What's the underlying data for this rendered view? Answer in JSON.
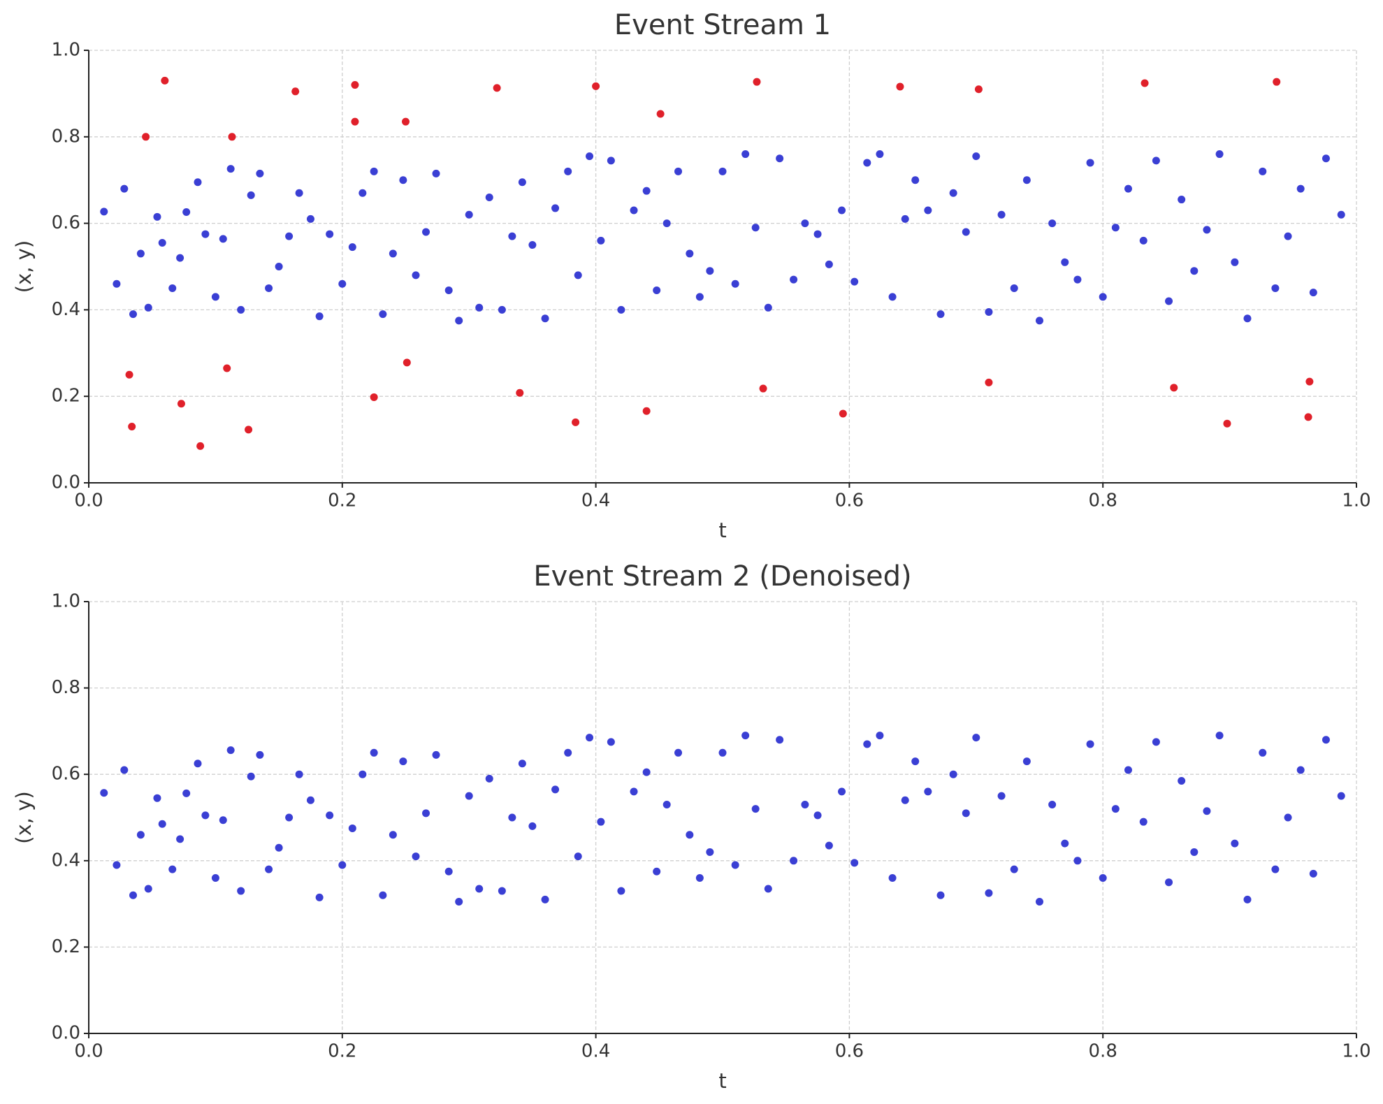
{
  "chart_data": [
    {
      "type": "scatter",
      "title": "Event Stream 1",
      "xlabel": "t",
      "ylabel": "(x, y)",
      "xlim": [
        0,
        1
      ],
      "ylim": [
        0,
        1
      ],
      "xticks": [
        {
          "value": 0,
          "label": "0.0"
        },
        0.2,
        0.4,
        0.6,
        0.8,
        {
          "value": 1,
          "label": "1.0"
        }
      ],
      "yticks": [
        {
          "value": 0,
          "label": "0.0"
        },
        0.2,
        0.4,
        0.6,
        0.8,
        {
          "value": 1,
          "label": "1.0"
        }
      ],
      "grid": true,
      "series": [
        {
          "color": "#3a3fd4",
          "x": [
            0.012,
            0.022,
            0.028,
            0.035,
            0.041,
            0.047,
            0.054,
            0.058,
            0.066,
            0.072,
            0.077,
            0.086,
            0.092,
            0.1,
            0.106,
            0.112,
            0.12,
            0.128,
            0.135,
            0.142,
            0.15,
            0.158,
            0.166,
            0.175,
            0.182,
            0.19,
            0.2,
            0.208,
            0.216,
            0.225,
            0.232,
            0.24,
            0.248,
            0.258,
            0.266,
            0.274,
            0.284,
            0.292,
            0.3,
            0.308,
            0.316,
            0.326,
            0.334,
            0.342,
            0.35,
            0.36,
            0.368,
            0.378,
            0.386,
            0.395,
            0.404,
            0.412,
            0.42,
            0.43,
            0.44,
            0.448,
            0.456,
            0.465,
            0.474,
            0.482,
            0.49,
            0.5,
            0.51,
            0.518,
            0.526,
            0.536,
            0.545,
            0.556,
            0.565,
            0.575,
            0.584,
            0.594,
            0.604,
            0.614,
            0.624,
            0.634,
            0.644,
            0.652,
            0.662,
            0.672,
            0.682,
            0.692,
            0.7,
            0.71,
            0.72,
            0.73,
            0.74,
            0.75,
            0.76,
            0.77,
            0.78,
            0.79,
            0.8,
            0.81,
            0.82,
            0.832,
            0.842,
            0.852,
            0.862,
            0.872,
            0.882,
            0.892,
            0.904,
            0.914,
            0.926,
            0.936,
            0.946,
            0.956,
            0.966,
            0.976,
            0.988
          ],
          "values": [
            0.627,
            0.46,
            0.68,
            0.39,
            0.53,
            0.405,
            0.615,
            0.555,
            0.45,
            0.52,
            0.626,
            0.695,
            0.575,
            0.43,
            0.564,
            0.726,
            0.4,
            0.665,
            0.715,
            0.45,
            0.5,
            0.57,
            0.67,
            0.61,
            0.385,
            0.575,
            0.46,
            0.545,
            0.67,
            0.72,
            0.39,
            0.53,
            0.7,
            0.48,
            0.58,
            0.715,
            0.445,
            0.375,
            0.62,
            0.405,
            0.66,
            0.4,
            0.57,
            0.695,
            0.55,
            0.38,
            0.635,
            0.72,
            0.48,
            0.755,
            0.56,
            0.745,
            0.4,
            0.63,
            0.675,
            0.445,
            0.6,
            0.72,
            0.53,
            0.43,
            0.49,
            0.72,
            0.46,
            0.76,
            0.59,
            0.405,
            0.75,
            0.47,
            0.6,
            0.575,
            0.505,
            0.63,
            0.465,
            0.74,
            0.76,
            0.43,
            0.61,
            0.7,
            0.63,
            0.39,
            0.67,
            0.58,
            0.755,
            0.395,
            0.62,
            0.45,
            0.7,
            0.375,
            0.6,
            0.51,
            0.47,
            0.74,
            0.43,
            0.59,
            0.68,
            0.56,
            0.745,
            0.42,
            0.655,
            0.49,
            0.585,
            0.76,
            0.51,
            0.38,
            0.72,
            0.45,
            0.57,
            0.68,
            0.44,
            0.75,
            0.62
          ]
        },
        {
          "color": "#e0202a",
          "x": [
            0.06,
            0.045,
            0.113,
            0.163,
            0.21,
            0.21,
            0.25,
            0.322,
            0.4,
            0.451,
            0.527,
            0.64,
            0.702,
            0.833,
            0.937,
            0.032,
            0.034,
            0.073,
            0.088,
            0.109,
            0.126,
            0.225,
            0.251,
            0.34,
            0.384,
            0.44,
            0.532,
            0.595,
            0.71,
            0.856,
            0.898,
            0.963,
            0.962
          ],
          "values": [
            0.93,
            0.8,
            0.8,
            0.905,
            0.92,
            0.835,
            0.835,
            0.913,
            0.917,
            0.853,
            0.927,
            0.916,
            0.91,
            0.924,
            0.927,
            0.25,
            0.13,
            0.183,
            0.085,
            0.265,
            0.123,
            0.198,
            0.278,
            0.208,
            0.14,
            0.166,
            0.218,
            0.16,
            0.232,
            0.22,
            0.137,
            0.234,
            0.152
          ]
        }
      ]
    },
    {
      "type": "scatter",
      "title": "Event Stream 2 (Denoised)",
      "xlabel": "t",
      "ylabel": "(x, y)",
      "xlim": [
        0,
        1
      ],
      "ylim": [
        0,
        1
      ],
      "xticks": [
        {
          "value": 0,
          "label": "0.0"
        },
        0.2,
        0.4,
        0.6,
        0.8,
        {
          "value": 1,
          "label": "1.0"
        }
      ],
      "yticks": [
        {
          "value": 0,
          "label": "0.0"
        },
        0.2,
        0.4,
        0.6,
        0.8,
        {
          "value": 1,
          "label": "1.0"
        }
      ],
      "grid": true,
      "series": [
        {
          "color": "#3a3fd4",
          "x": [
            0.012,
            0.022,
            0.028,
            0.035,
            0.041,
            0.047,
            0.054,
            0.058,
            0.066,
            0.072,
            0.077,
            0.086,
            0.092,
            0.1,
            0.106,
            0.112,
            0.12,
            0.128,
            0.135,
            0.142,
            0.15,
            0.158,
            0.166,
            0.175,
            0.182,
            0.19,
            0.2,
            0.208,
            0.216,
            0.225,
            0.232,
            0.24,
            0.248,
            0.258,
            0.266,
            0.274,
            0.284,
            0.292,
            0.3,
            0.308,
            0.316,
            0.326,
            0.334,
            0.342,
            0.35,
            0.36,
            0.368,
            0.378,
            0.386,
            0.395,
            0.404,
            0.412,
            0.42,
            0.43,
            0.44,
            0.448,
            0.456,
            0.465,
            0.474,
            0.482,
            0.49,
            0.5,
            0.51,
            0.518,
            0.526,
            0.536,
            0.545,
            0.556,
            0.565,
            0.575,
            0.584,
            0.594,
            0.604,
            0.614,
            0.624,
            0.634,
            0.644,
            0.652,
            0.662,
            0.672,
            0.682,
            0.692,
            0.7,
            0.71,
            0.72,
            0.73,
            0.74,
            0.75,
            0.76,
            0.77,
            0.78,
            0.79,
            0.8,
            0.81,
            0.82,
            0.832,
            0.842,
            0.852,
            0.862,
            0.872,
            0.882,
            0.892,
            0.904,
            0.914,
            0.926,
            0.936,
            0.946,
            0.956,
            0.966,
            0.976,
            0.988
          ],
          "values": [
            0.557,
            0.39,
            0.61,
            0.32,
            0.46,
            0.335,
            0.545,
            0.485,
            0.38,
            0.45,
            0.556,
            0.625,
            0.505,
            0.36,
            0.494,
            0.656,
            0.33,
            0.595,
            0.645,
            0.38,
            0.43,
            0.5,
            0.6,
            0.54,
            0.315,
            0.505,
            0.39,
            0.475,
            0.6,
            0.65,
            0.32,
            0.46,
            0.63,
            0.41,
            0.51,
            0.645,
            0.375,
            0.305,
            0.55,
            0.335,
            0.59,
            0.33,
            0.5,
            0.625,
            0.48,
            0.31,
            0.565,
            0.65,
            0.41,
            0.685,
            0.49,
            0.675,
            0.33,
            0.56,
            0.605,
            0.375,
            0.53,
            0.65,
            0.46,
            0.36,
            0.42,
            0.65,
            0.39,
            0.69,
            0.52,
            0.335,
            0.68,
            0.4,
            0.53,
            0.505,
            0.435,
            0.56,
            0.395,
            0.67,
            0.69,
            0.36,
            0.54,
            0.63,
            0.56,
            0.32,
            0.6,
            0.51,
            0.685,
            0.325,
            0.55,
            0.38,
            0.63,
            0.305,
            0.53,
            0.44,
            0.4,
            0.67,
            0.36,
            0.52,
            0.61,
            0.49,
            0.675,
            0.35,
            0.585,
            0.42,
            0.515,
            0.69,
            0.44,
            0.31,
            0.65,
            0.38,
            0.5,
            0.61,
            0.37,
            0.68,
            0.55
          ]
        }
      ]
    }
  ]
}
